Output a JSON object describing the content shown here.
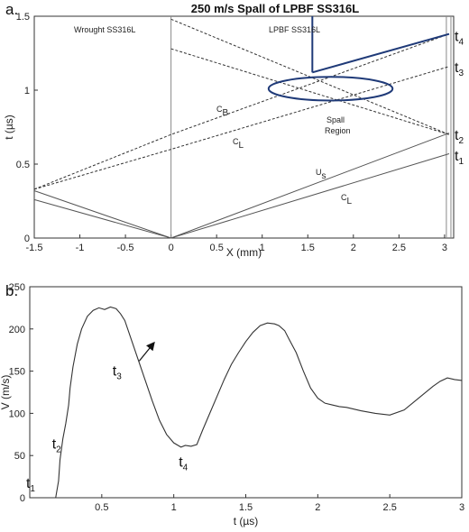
{
  "chart_data": [
    {
      "type": "line",
      "panel_label": "a.",
      "title": "250 m/s Spall of LPBF SS316L",
      "xlabel": "X (mm)",
      "ylabel": "t (µs)",
      "xlim": [
        -1.5,
        3.1
      ],
      "ylim": [
        0,
        1.5
      ],
      "xticks": [
        "-1.5",
        "-1",
        "-0.5",
        "0",
        "0.5",
        "1",
        "1.5",
        "2",
        "2.5",
        "3"
      ],
      "yticks": [
        "0",
        "0.5",
        "1",
        "1.5"
      ],
      "region_labels": [
        "Wrought SS316L",
        "LPBF SS316L"
      ],
      "annotations": [
        "C",
        "B",
        "C",
        "L",
        "U",
        "s",
        "C",
        "L",
        "Spall",
        "Region"
      ],
      "time_labels": [
        {
          "base": "t",
          "sub": "1",
          "y": 0.56
        },
        {
          "base": "t",
          "sub": "2",
          "y": 0.7
        },
        {
          "base": "t",
          "sub": "3",
          "y": 1.16
        },
        {
          "base": "t",
          "sub": "4",
          "y": 1.37
        }
      ],
      "spall_ellipse": {
        "cx": 1.75,
        "cy": 1.01,
        "rx": 0.68,
        "ry": 0.08
      },
      "series": [
        {
          "style": "solid",
          "color": "#555555",
          "x": [
            -1.5,
            0,
            3.05
          ],
          "y": [
            0.26,
            0,
            0.57
          ]
        },
        {
          "style": "solid",
          "color": "#555555",
          "x": [
            -1.5,
            0,
            3.05
          ],
          "y": [
            0.32,
            0,
            0.71
          ]
        },
        {
          "style": "dashed",
          "color": "#333333",
          "x": [
            -1.5,
            0,
            3.05
          ],
          "y": [
            0.33,
            0.6,
            1.16
          ]
        },
        {
          "style": "dashed",
          "color": "#333333",
          "x": [
            -1.5,
            0,
            3.05
          ],
          "y": [
            0.33,
            0.7,
            1.38
          ]
        },
        {
          "style": "dashed",
          "color": "#333333",
          "x": [
            0,
            3.05
          ],
          "y": [
            1.48,
            0.7
          ]
        },
        {
          "style": "dashed",
          "color": "#333333",
          "x": [
            0,
            3.05
          ],
          "y": [
            1.28,
            0.7
          ]
        },
        {
          "style": "solid",
          "color": "#1f3a78",
          "x": [
            1.55,
            1.55
          ],
          "y": [
            1.5,
            1.12
          ]
        },
        {
          "style": "solid",
          "color": "#1f3a78",
          "x": [
            1.55,
            3.05
          ],
          "y": [
            1.12,
            1.38
          ]
        }
      ],
      "vlines": [
        {
          "x": 0,
          "color": "#888888"
        },
        {
          "x": 3.02,
          "color": "#888888"
        },
        {
          "x": 3.07,
          "color": "#888888"
        }
      ]
    },
    {
      "type": "line",
      "panel_label": "b.",
      "xlabel": "t (µs)",
      "ylabel": "V (m/s)",
      "xlim": [
        0,
        3
      ],
      "ylim": [
        0,
        250
      ],
      "xticks": [
        "0.5",
        "1",
        "1.5",
        "2",
        "2.5",
        "3"
      ],
      "yticks": [
        "0",
        "50",
        "100",
        "150",
        "200",
        "250"
      ],
      "time_labels": [
        {
          "base": "t",
          "sub": "1",
          "x": 0.05,
          "y": 12
        },
        {
          "base": "t",
          "sub": "2",
          "x": 0.23,
          "y": 58
        },
        {
          "base": "t",
          "sub": "3",
          "x": 0.65,
          "y": 145
        },
        {
          "base": "t",
          "sub": "4",
          "x": 1.11,
          "y": 37
        }
      ],
      "arrow": {
        "from": [
          0.76,
          162
        ],
        "to": [
          0.86,
          183
        ]
      },
      "series": [
        {
          "x": [
            0,
            0.18,
            0.2,
            0.21,
            0.23,
            0.25,
            0.27,
            0.28,
            0.3,
            0.33,
            0.36,
            0.4,
            0.44,
            0.48,
            0.52,
            0.56,
            0.6,
            0.63,
            0.66,
            0.7,
            0.75,
            0.8,
            0.85,
            0.9,
            0.95,
            1.0,
            1.05,
            1.08,
            1.12,
            1.16,
            1.2,
            1.25,
            1.3,
            1.35,
            1.4,
            1.45,
            1.5,
            1.55,
            1.6,
            1.65,
            1.7,
            1.73,
            1.77,
            1.8,
            1.85,
            1.9,
            1.95,
            2.0,
            2.05,
            2.1,
            2.15,
            2.2,
            2.3,
            2.4,
            2.5,
            2.6,
            2.7,
            2.8,
            2.85,
            2.9,
            2.95,
            3.0
          ],
          "y": [
            0,
            0,
            20,
            45,
            70,
            88,
            110,
            130,
            155,
            182,
            200,
            215,
            222,
            225,
            223,
            226,
            224,
            218,
            210,
            190,
            165,
            140,
            115,
            92,
            75,
            65,
            60,
            62,
            61,
            63,
            80,
            100,
            120,
            140,
            158,
            172,
            185,
            196,
            204,
            207,
            206,
            204,
            198,
            188,
            172,
            150,
            130,
            118,
            112,
            110,
            108,
            107,
            103,
            100,
            98,
            104,
            118,
            132,
            138,
            142,
            140,
            139
          ]
        }
      ]
    }
  ]
}
